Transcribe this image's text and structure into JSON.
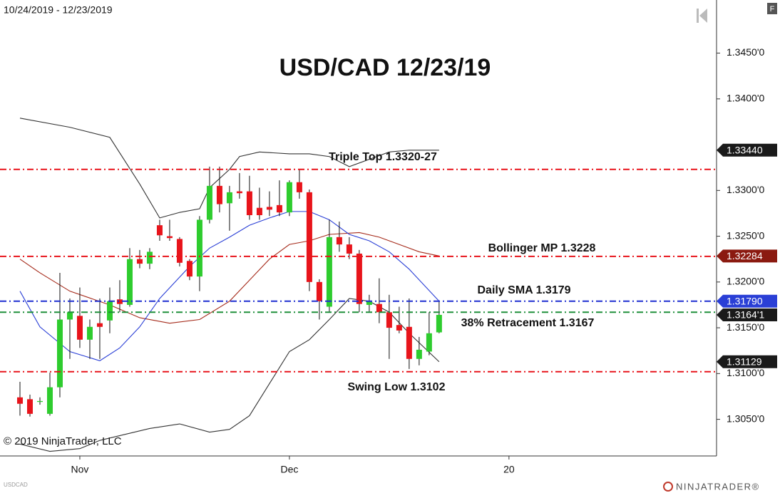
{
  "chart_data": {
    "type": "candlestick",
    "title": "USD/CAD 12/23/19",
    "date_range": "10/24/2019 - 12/23/2019",
    "copyright": "© 2019 NinjaTrader, LLC",
    "symbol": "USDCAD",
    "brand": "NINJATRADER®",
    "panel_button": "F",
    "up_color": "#2ecc2e",
    "down_color": "#e8141b",
    "open": [
      1.3074,
      1.3072,
      1.3069,
      1.3056,
      1.3085,
      1.3159,
      1.3163,
      1.3137,
      1.3155,
      1.3158,
      1.3181,
      1.3175,
      1.3225,
      1.322,
      1.3262,
      1.325,
      1.3247,
      1.3223,
      1.3206,
      1.3268,
      1.3305,
      1.3286,
      1.3299,
      1.3299,
      1.3281,
      1.3282,
      1.3284,
      1.3276,
      1.3309,
      1.3298,
      1.32,
      1.3173,
      1.3249,
      1.3241,
      1.3231,
      1.3175,
      1.3176,
      1.3167,
      1.3153,
      1.3151,
      1.3116,
      1.3124,
      1.3145
    ],
    "high": [
      1.3091,
      1.3077,
      1.3074,
      1.3101,
      1.321,
      1.3182,
      1.3194,
      1.3159,
      1.3182,
      1.3194,
      1.3202,
      1.3237,
      1.3235,
      1.3237,
      1.3268,
      1.3268,
      1.3249,
      1.3225,
      1.3272,
      1.3326,
      1.3326,
      1.3305,
      1.3319,
      1.3316,
      1.3303,
      1.3299,
      1.3311,
      1.3311,
      1.3323,
      1.3301,
      1.3203,
      1.3268,
      1.3266,
      1.3249,
      1.3235,
      1.3186,
      1.3204,
      1.3186,
      1.3173,
      1.3182,
      1.314,
      1.3167,
      1.3179
    ],
    "low": [
      1.3054,
      1.3053,
      1.3066,
      1.3054,
      1.3074,
      1.3116,
      1.3128,
      1.3116,
      1.3116,
      1.3144,
      1.3167,
      1.3173,
      1.3215,
      1.3214,
      1.3245,
      1.3245,
      1.3217,
      1.3202,
      1.319,
      1.3264,
      1.3276,
      1.3256,
      1.3291,
      1.3268,
      1.3268,
      1.3272,
      1.3272,
      1.3272,
      1.3291,
      1.319,
      1.3159,
      1.3167,
      1.3233,
      1.3225,
      1.3167,
      1.3167,
      1.3155,
      1.3116,
      1.3144,
      1.3105,
      1.3109,
      1.312,
      1.3144
    ],
    "close": [
      1.3067,
      1.3056,
      1.307,
      1.3085,
      1.3159,
      1.3167,
      1.3137,
      1.3151,
      1.3151,
      1.3179,
      1.3176,
      1.3225,
      1.322,
      1.3233,
      1.3251,
      1.3248,
      1.3221,
      1.3206,
      1.3268,
      1.3305,
      1.3285,
      1.3298,
      1.3297,
      1.3273,
      1.3273,
      1.3279,
      1.3276,
      1.3309,
      1.3298,
      1.32,
      1.3179,
      1.3249,
      1.3241,
      1.3231,
      1.3176,
      1.3179,
      1.3167,
      1.315,
      1.3147,
      1.3116,
      1.3126,
      1.3144,
      1.31641
    ],
    "overlays": [
      {
        "color": "#333333",
        "x": [
          0,
          5,
          9,
          12,
          14,
          16,
          18,
          19,
          21,
          22,
          24,
          27,
          29,
          31,
          33,
          35,
          37,
          39,
          42
        ],
        "values": [
          1.3379,
          1.3369,
          1.3358,
          1.3307,
          1.327,
          1.3276,
          1.328,
          1.3303,
          1.3323,
          1.3337,
          1.3342,
          1.334,
          1.334,
          1.3337,
          1.3326,
          1.3334,
          1.3342,
          1.3344,
          1.3344
        ]
      },
      {
        "color": "#a52a1a",
        "x": [
          0,
          2,
          5,
          9,
          12,
          15,
          18,
          21,
          23,
          25,
          27,
          29,
          31,
          34,
          36,
          38,
          40,
          42
        ],
        "values": [
          1.3225,
          1.321,
          1.319,
          1.3175,
          1.3161,
          1.3155,
          1.3159,
          1.3179,
          1.3202,
          1.3225,
          1.3241,
          1.3245,
          1.3252,
          1.3254,
          1.3249,
          1.3241,
          1.3233,
          1.32284
        ]
      },
      {
        "color": "#2a3fd6",
        "x": [
          0,
          2,
          5,
          8,
          10,
          12,
          14,
          17,
          19,
          21,
          23,
          25,
          27,
          29,
          31,
          33,
          35,
          37,
          39,
          42
        ],
        "values": [
          1.319,
          1.3151,
          1.3124,
          1.3114,
          1.3128,
          1.3151,
          1.3182,
          1.3217,
          1.3237,
          1.3249,
          1.3262,
          1.327,
          1.3277,
          1.3277,
          1.3268,
          1.3252,
          1.3245,
          1.3233,
          1.3214,
          1.3179
        ]
      },
      {
        "color": "#333333",
        "x": [
          0,
          3,
          6,
          8,
          13,
          16,
          19,
          21,
          23,
          25,
          27,
          29,
          31,
          33,
          35,
          37,
          39,
          42
        ],
        "values": [
          1.3023,
          1.3015,
          1.3018,
          1.3027,
          1.304,
          1.3045,
          1.3036,
          1.3039,
          1.3054,
          1.3089,
          1.3124,
          1.3137,
          1.3159,
          1.3182,
          1.3179,
          1.3167,
          1.3144,
          1.31129
        ]
      }
    ],
    "levels": [
      {
        "value": 1.3323,
        "label": "Triple Top 1.3320-27",
        "color": "#e8141b"
      },
      {
        "value": 1.3228,
        "label": "Bollinger MP 1.3228",
        "color": "#e8141b"
      },
      {
        "value": 1.3179,
        "label": "Daily SMA 1.3179",
        "color": "#1f2fd0"
      },
      {
        "value": 1.3167,
        "label": "38% Retracement 1.3167",
        "color": "#1f8f3a"
      },
      {
        "value": 1.3102,
        "label": "Swing Low 1.3102",
        "color": "#e8141b"
      }
    ],
    "price_markers": [
      {
        "value": 1.3344,
        "label": "1.33440",
        "color": "#1a1a1a"
      },
      {
        "value": 1.32284,
        "label": "1.32284",
        "color": "#8b1a10"
      },
      {
        "value": 1.3179,
        "label": "1.31790",
        "color": "#2a3fd6"
      },
      {
        "value": 1.31641,
        "label": "1.3164'1",
        "color": "#1a1a1a"
      },
      {
        "value": 1.31129,
        "label": "1.31129",
        "color": "#1a1a1a"
      }
    ],
    "xlim": [
      -2,
      69.8
    ],
    "xticks": [
      {
        "value": 6,
        "label": "Nov"
      },
      {
        "value": 27,
        "label": "Dec"
      },
      {
        "value": 49,
        "label": "20"
      }
    ],
    "ylim": [
      1.301,
      1.3508
    ],
    "yticks": [
      {
        "value": 1.305,
        "label": "1.3050'0"
      },
      {
        "value": 1.31,
        "label": "1.3100'0"
      },
      {
        "value": 1.315,
        "label": "1.3150'0"
      },
      {
        "value": 1.32,
        "label": "1.3200'0"
      },
      {
        "value": 1.325,
        "label": "1.3250'0"
      },
      {
        "value": 1.33,
        "label": "1.3300'0"
      },
      {
        "value": 1.34,
        "label": "1.3400'0"
      },
      {
        "value": 1.345,
        "label": "1.3450'0"
      }
    ]
  }
}
